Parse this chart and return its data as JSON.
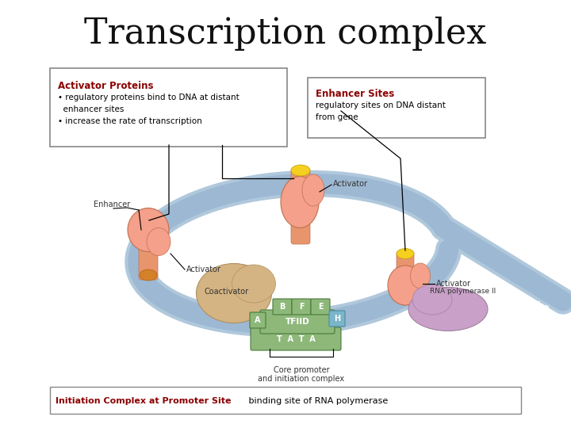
{
  "title": "Transcription complex",
  "title_fontsize": 32,
  "title_font": "DejaVu Serif",
  "bg_color": "#ffffff",
  "box1_title": "Activator Proteins",
  "box1_lines": [
    "• regulatory proteins bind to DNA at distant",
    "  enhancer sites",
    "• increase the rate of transcription"
  ],
  "box1_title_color": "#8B0000",
  "box1_text_color": "#000000",
  "box2_title": "Enhancer Sites",
  "box2_lines": [
    "regulatory sites on DNA distant",
    "from gene"
  ],
  "box2_title_color": "#8B0000",
  "box2_text_color": "#000000",
  "bottom_box_bold": "Initiation Complex at Promoter Site",
  "bottom_box_normal": " binding site of RNA polymerase",
  "bottom_bold_color": "#8B0000",
  "bottom_normal_color": "#000000",
  "dna_color": "#9db8d2",
  "dna_shadow_color": "#b0c8dc",
  "salmon_color": "#f4a08a",
  "tan_color": "#d4b483",
  "yellow_color": "#f5d020",
  "green_color": "#8db87a",
  "purple_color": "#c9a0c8",
  "teal_color": "#7ab5c8",
  "orange_color": "#d4822a"
}
